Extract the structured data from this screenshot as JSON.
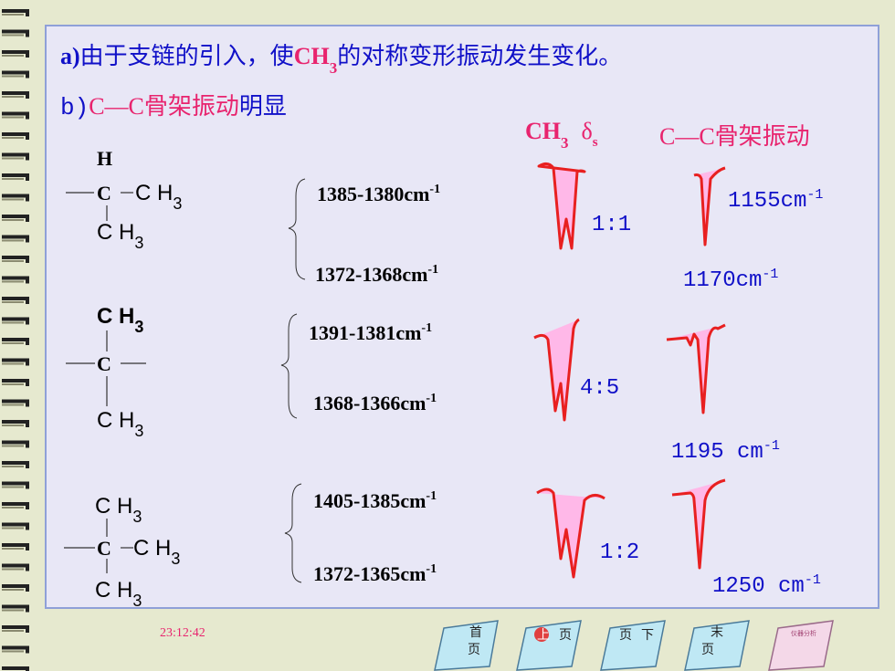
{
  "line_a": {
    "prefix": "a)",
    "text1": "由于支链的引入，使",
    "chem": "CH",
    "sub": "3",
    "text2": "的对称变形振动发生变化。"
  },
  "line_b": {
    "prefix": "b)",
    "highlight": "C—C骨架振动",
    "text": "明显"
  },
  "headers": {
    "ch3": "CH",
    "ch3_sub": "3",
    "delta": "δ",
    "delta_sub": "s",
    "skeleton": "C—C骨架振动"
  },
  "groups": [
    {
      "structure": [
        {
          "text": "H"
        },
        {
          "text": "C"
        },
        {
          "text": "C H",
          "sub": "3"
        },
        {
          "text": "C H",
          "sub": "3"
        }
      ],
      "bands": [
        {
          "text": "1385-1380cm",
          "sup": "-1"
        },
        {
          "text": "1372-1368cm",
          "sup": "-1"
        }
      ],
      "ratio": "1:1",
      "skeleton_bands": [
        {
          "text": "1155cm",
          "sup": "-1"
        },
        {
          "text": "1170cm",
          "sup": "-1"
        }
      ]
    },
    {
      "structure": [
        {
          "text": "C H",
          "sub": "3"
        },
        {
          "text": "C"
        },
        {
          "text": "C H",
          "sub": "3"
        }
      ],
      "bands": [
        {
          "text": "1391-1381cm",
          "sup": "-1"
        },
        {
          "text": "1368-1366cm",
          "sup": "-1"
        }
      ],
      "ratio": "4:5",
      "skeleton_bands": [
        {
          "text": "1195 cm",
          "sup": "-1"
        }
      ]
    },
    {
      "structure": [
        {
          "text": "C H",
          "sub": "3"
        },
        {
          "text": "C"
        },
        {
          "text": "C H",
          "sub": "3"
        },
        {
          "text": "C H",
          "sub": "3"
        }
      ],
      "bands": [
        {
          "text": "1405-1385cm",
          "sup": "-1"
        },
        {
          "text": "1372-1365cm",
          "sup": "-1"
        }
      ],
      "ratio": "1:2",
      "skeleton_bands": [
        {
          "text": "1250 cm",
          "sup": "-1"
        }
      ]
    }
  ],
  "timestamp": "23:12:42",
  "nav": [
    [
      "首",
      "页"
    ],
    [
      "上",
      "页"
    ],
    [
      "页",
      "下"
    ],
    [
      "末",
      "页"
    ]
  ],
  "logo": "仪器分析"
}
